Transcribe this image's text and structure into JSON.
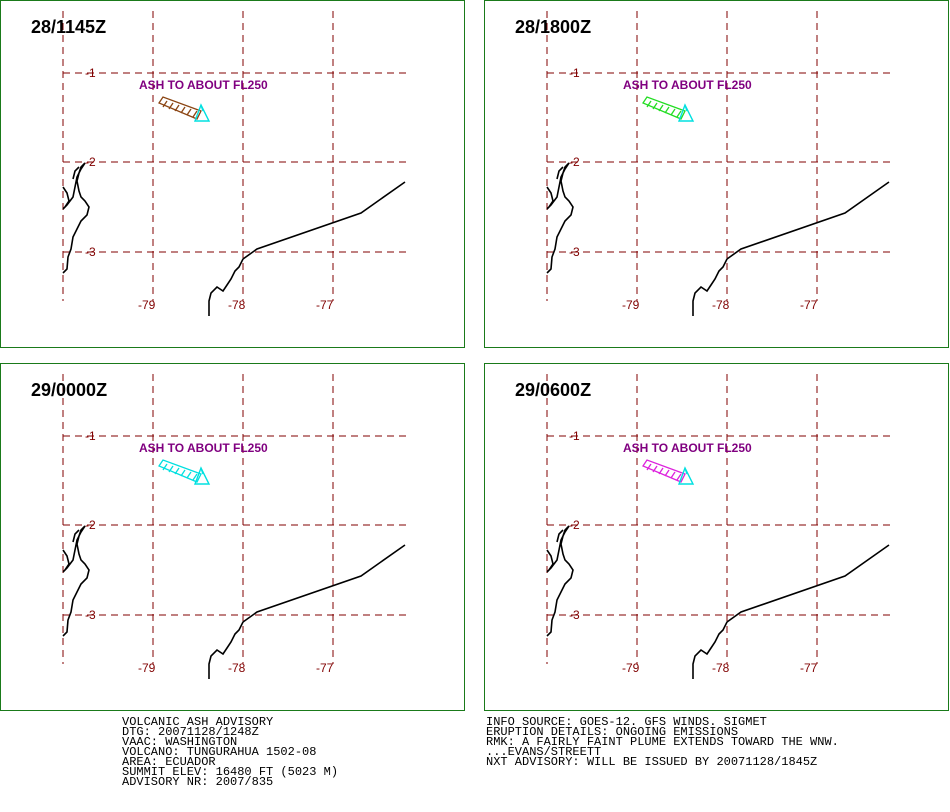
{
  "panels": [
    {
      "time": "28/1145Z",
      "label": "ASH TO ABOUT FL250",
      "plume_color": "#8b4513"
    },
    {
      "time": "28/1800Z",
      "label": "ASH TO ABOUT FL250",
      "plume_color": "#22dd22"
    },
    {
      "time": "29/0000Z",
      "label": "ASH TO ABOUT FL250",
      "plume_color": "#00e0e0"
    },
    {
      "time": "29/0600Z",
      "label": "ASH TO ABOUT FL250",
      "plume_color": "#dd22dd"
    }
  ],
  "lat_labels": [
    "-1",
    "-2",
    "-3"
  ],
  "lon_labels": [
    "-79",
    "-78",
    "-77"
  ],
  "volcano_color": "#00e0e0",
  "grid_color": "#800000",
  "label_color": "#800080",
  "advisory_left": [
    "VOLCANIC ASH ADVISORY",
    "DTG: 20071128/1248Z",
    "VAAC: WASHINGTON",
    "VOLCANO: TUNGURAHUA 1502-08",
    "AREA: ECUADOR",
    "SUMMIT ELEV: 16480 FT (5023 M)",
    "ADVISORY NR: 2007/835"
  ],
  "advisory_right": [
    "INFO SOURCE: GOES-12. GFS WINDS. SIGMET",
    "ERUPTION DETAILS: ONGOING EMISSIONS",
    "RMK: A FAIRLY FAINT PLUME EXTENDS TOWARD THE WNW.",
    "...EVANS/STREETT",
    "NXT ADVISORY: WILL BE ISSUED BY 20071128/1845Z"
  ]
}
